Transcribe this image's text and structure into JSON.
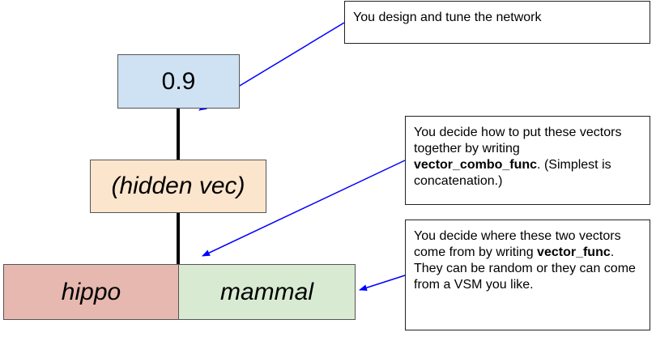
{
  "nodes": {
    "output": "0.9",
    "hidden": "(hidden vec)",
    "word1": "hippo",
    "word2": "mammal"
  },
  "notes": {
    "network": "You design and tune the network",
    "combo": {
      "pre": "You decide how to put these vectors together by writing ",
      "func": "vector_combo_func",
      "post": ". (Simplest is concatenation.)"
    },
    "vector": {
      "pre": "You decide where these two vectors come from by writing ",
      "func": "vector_func",
      "post": ". They can be random or they can come from a VSM you like."
    }
  },
  "colors": {
    "output": "#cfe2f3",
    "hidden": "#fce5cd",
    "word1": "#e6b8af",
    "word2": "#d9ead3",
    "arrow": "#0000ff"
  }
}
